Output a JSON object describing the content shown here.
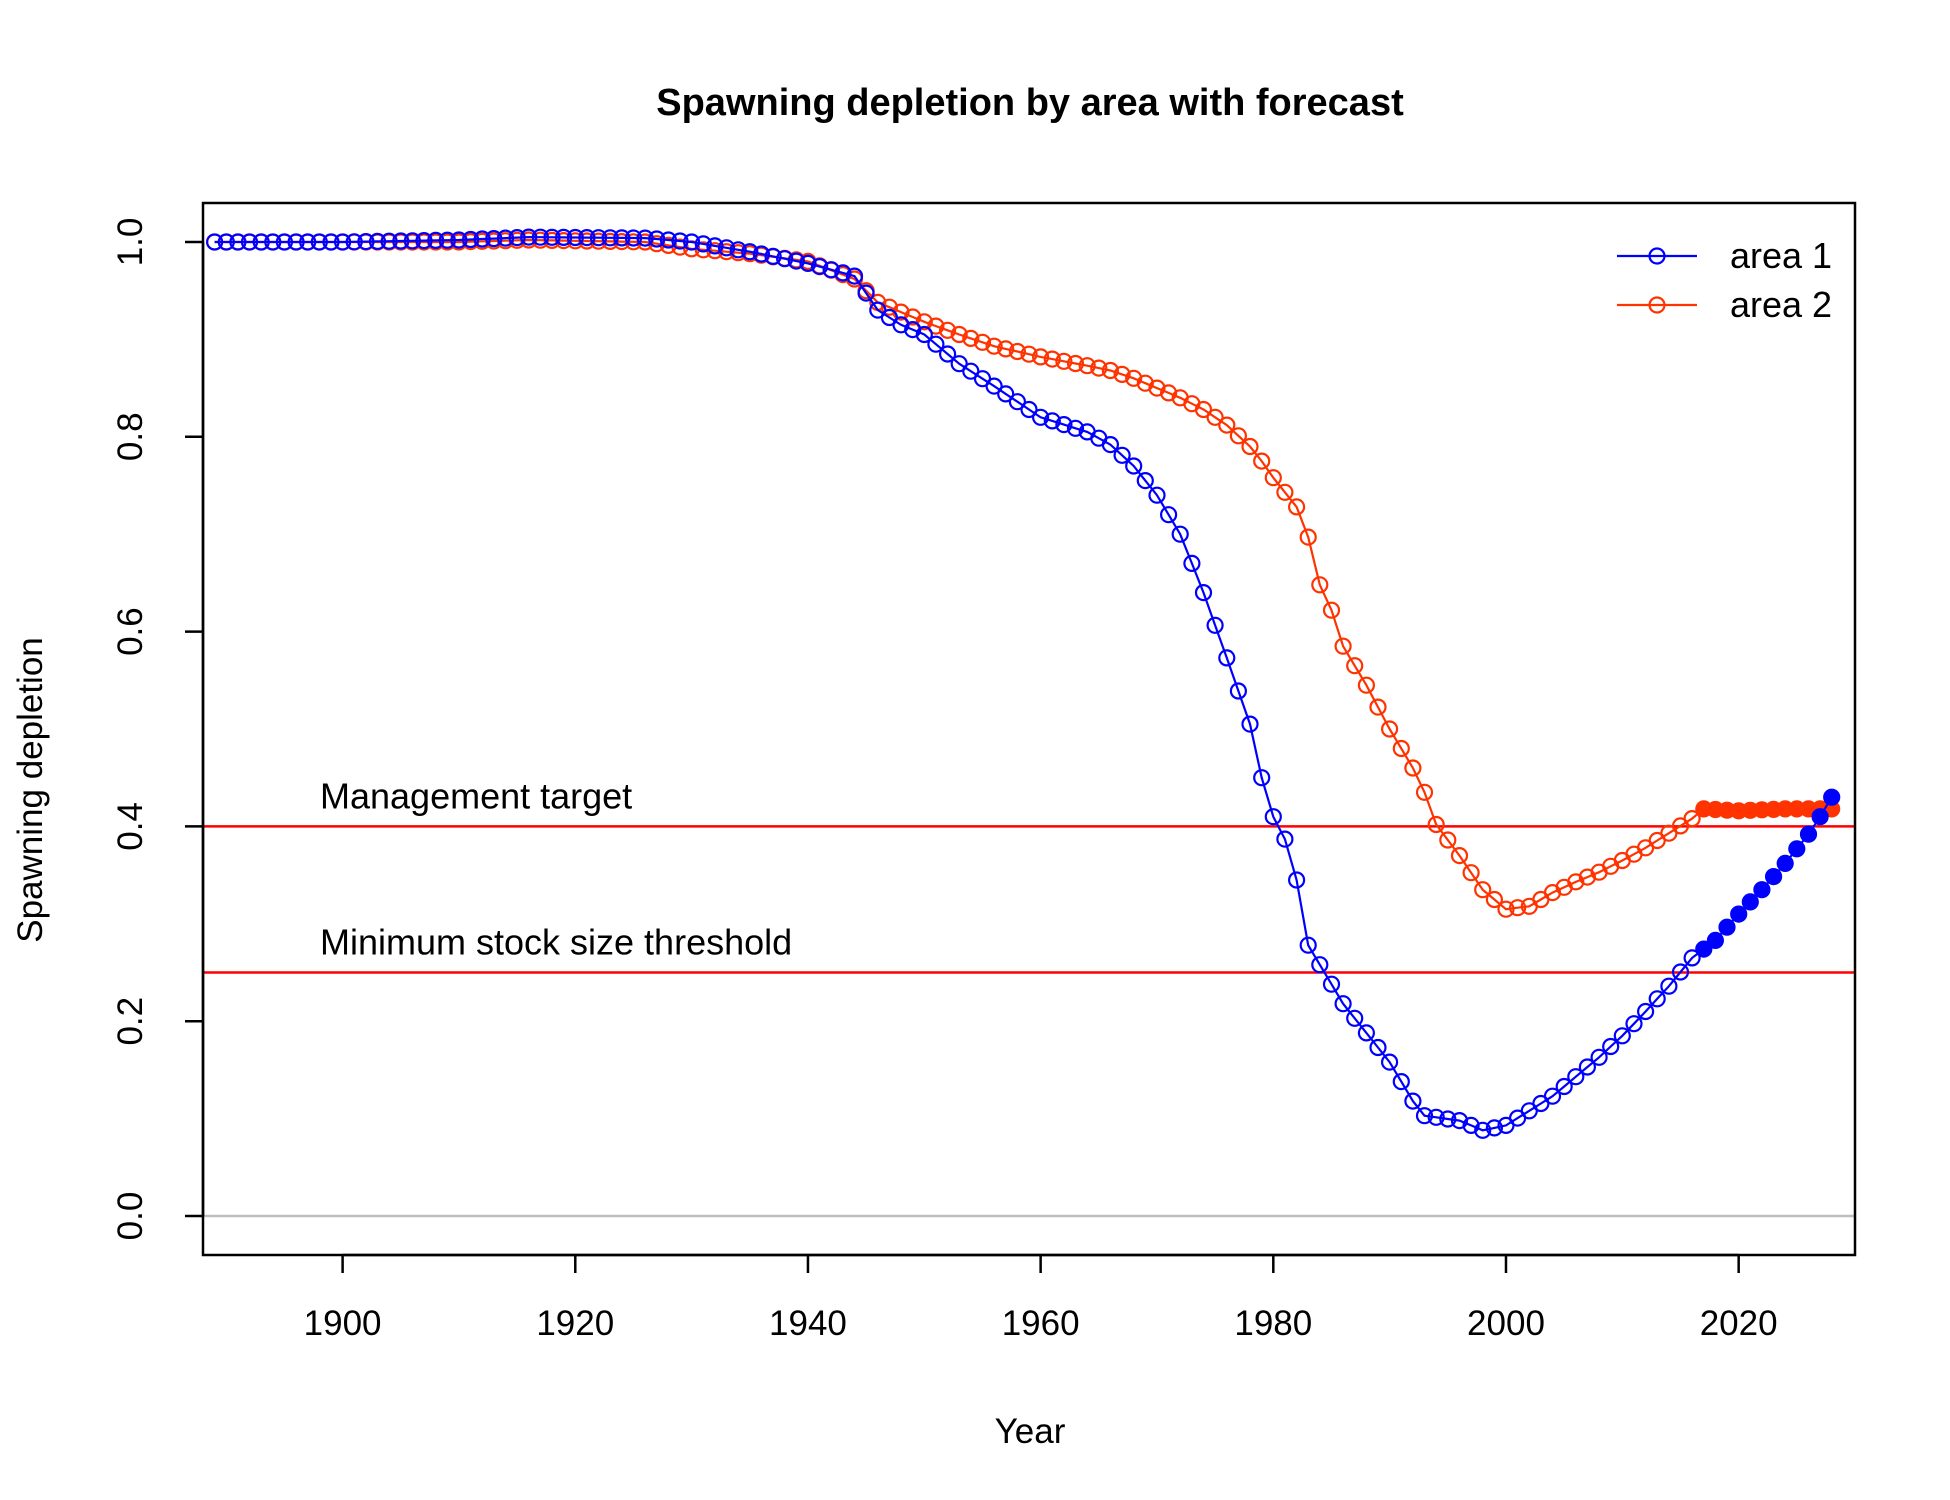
{
  "chart_data": {
    "type": "line",
    "title": "Spawning depletion by area with forecast",
    "xlabel": "Year",
    "ylabel": "Spawning depletion",
    "xlim": [
      1888,
      2030
    ],
    "ylim": [
      -0.04,
      1.04
    ],
    "x_ticks": [
      1900,
      1920,
      1940,
      1960,
      1980,
      2000,
      2020
    ],
    "y_ticks": [
      0.0,
      0.2,
      0.4,
      0.6,
      0.8,
      1.0
    ],
    "x_tick_labels": [
      "1900",
      "1920",
      "1940",
      "1960",
      "1980",
      "2000",
      "2020"
    ],
    "y_tick_labels": [
      "0.0",
      "0.2",
      "0.4",
      "0.6",
      "0.8",
      "1.0"
    ],
    "grid": false,
    "legend_position": "top-right",
    "forecast_start_year": 2017,
    "reference_lines": [
      {
        "label": "Management target",
        "y": 0.4,
        "color": "#ff0000"
      },
      {
        "label": "Minimum stock size threshold",
        "y": 0.25,
        "color": "#ff0000"
      },
      {
        "label": "",
        "y": 0.0,
        "color": "#bebebe"
      }
    ],
    "series": [
      {
        "name": "area 1",
        "color": "#0000ff",
        "anchors": [
          [
            1889,
            1.0
          ],
          [
            1900,
            1.0
          ],
          [
            1910,
            1.002
          ],
          [
            1916,
            1.005
          ],
          [
            1926,
            1.004
          ],
          [
            1930,
            1.0
          ],
          [
            1935,
            0.99
          ],
          [
            1940,
            0.978
          ],
          [
            1944,
            0.965
          ],
          [
            1946,
            0.93
          ],
          [
            1948,
            0.915
          ],
          [
            1950,
            0.905
          ],
          [
            1953,
            0.875
          ],
          [
            1956,
            0.852
          ],
          [
            1960,
            0.82
          ],
          [
            1964,
            0.805
          ],
          [
            1966,
            0.792
          ],
          [
            1968,
            0.77
          ],
          [
            1970,
            0.74
          ],
          [
            1972,
            0.7
          ],
          [
            1974,
            0.64
          ],
          [
            1976,
            0.573
          ],
          [
            1978,
            0.505
          ],
          [
            1979,
            0.45
          ],
          [
            1980,
            0.41
          ],
          [
            1981,
            0.387
          ],
          [
            1982,
            0.345
          ],
          [
            1983,
            0.278
          ],
          [
            1984,
            0.258
          ],
          [
            1986,
            0.218
          ],
          [
            1988,
            0.188
          ],
          [
            1990,
            0.158
          ],
          [
            1992,
            0.118
          ],
          [
            1993,
            0.103
          ],
          [
            1996,
            0.098
          ],
          [
            1998,
            0.088
          ],
          [
            2000,
            0.093
          ],
          [
            2002,
            0.108
          ],
          [
            2004,
            0.123
          ],
          [
            2006,
            0.143
          ],
          [
            2008,
            0.163
          ],
          [
            2010,
            0.185
          ],
          [
            2012,
            0.21
          ],
          [
            2014,
            0.236
          ],
          [
            2016,
            0.265
          ],
          [
            2018,
            0.283
          ],
          [
            2020,
            0.31
          ],
          [
            2022,
            0.335
          ],
          [
            2024,
            0.362
          ],
          [
            2026,
            0.392
          ],
          [
            2027,
            0.41
          ],
          [
            2028,
            0.43
          ]
        ]
      },
      {
        "name": "area 2",
        "color": "#ff3300",
        "anchors": [
          [
            1889,
            1.0
          ],
          [
            1910,
            1.0
          ],
          [
            1916,
            1.002
          ],
          [
            1926,
            1.0
          ],
          [
            1930,
            0.993
          ],
          [
            1935,
            0.988
          ],
          [
            1940,
            0.98
          ],
          [
            1944,
            0.962
          ],
          [
            1946,
            0.938
          ],
          [
            1948,
            0.928
          ],
          [
            1950,
            0.918
          ],
          [
            1953,
            0.905
          ],
          [
            1956,
            0.893
          ],
          [
            1960,
            0.882
          ],
          [
            1964,
            0.873
          ],
          [
            1966,
            0.868
          ],
          [
            1968,
            0.86
          ],
          [
            1970,
            0.85
          ],
          [
            1972,
            0.84
          ],
          [
            1974,
            0.828
          ],
          [
            1976,
            0.812
          ],
          [
            1978,
            0.79
          ],
          [
            1979,
            0.775
          ],
          [
            1980,
            0.758
          ],
          [
            1982,
            0.728
          ],
          [
            1983,
            0.697
          ],
          [
            1984,
            0.648
          ],
          [
            1985,
            0.622
          ],
          [
            1986,
            0.585
          ],
          [
            1988,
            0.545
          ],
          [
            1990,
            0.5
          ],
          [
            1992,
            0.46
          ],
          [
            1993,
            0.435
          ],
          [
            1994,
            0.402
          ],
          [
            1996,
            0.37
          ],
          [
            1998,
            0.335
          ],
          [
            2000,
            0.315
          ],
          [
            2002,
            0.318
          ],
          [
            2004,
            0.332
          ],
          [
            2006,
            0.343
          ],
          [
            2008,
            0.353
          ],
          [
            2010,
            0.365
          ],
          [
            2012,
            0.378
          ],
          [
            2014,
            0.393
          ],
          [
            2016,
            0.408
          ],
          [
            2017,
            0.418
          ],
          [
            2020,
            0.416
          ],
          [
            2024,
            0.418
          ],
          [
            2028,
            0.418
          ]
        ]
      }
    ]
  }
}
